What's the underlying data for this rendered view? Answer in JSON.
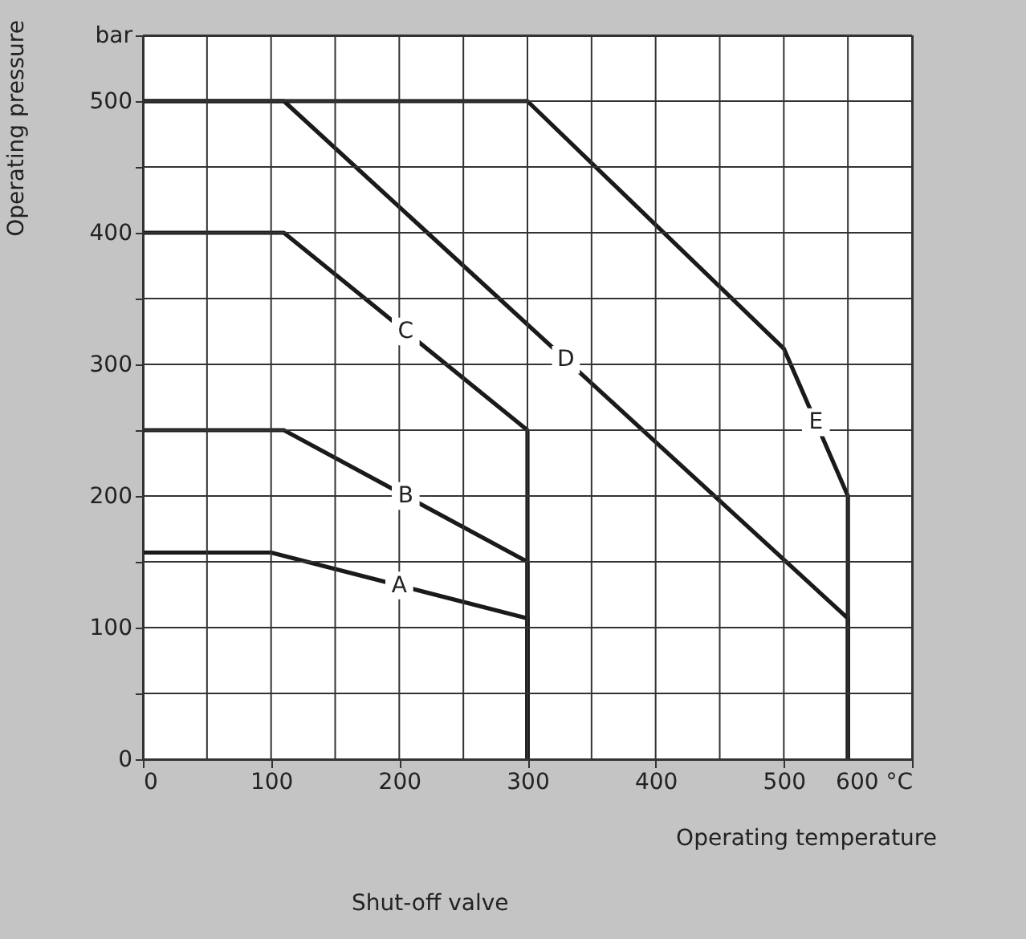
{
  "chart_data": {
    "type": "line",
    "ylabel": "Operating pressure",
    "xlabel": "Operating temperature",
    "annotations": [
      "Shut-off valve"
    ],
    "series": [
      {
        "name": "A",
        "color": "#1a1a1a",
        "x": [
          0,
          100,
          300,
          300
        ],
        "values": [
          157,
          157,
          107,
          0
        ]
      },
      {
        "name": "B",
        "color": "#1a1a1a",
        "x": [
          0,
          110,
          300,
          300
        ],
        "values": [
          250,
          250,
          150,
          0
        ]
      },
      {
        "name": "C",
        "color": "#1a1a1a",
        "x": [
          0,
          110,
          300,
          300
        ],
        "values": [
          400,
          400,
          250,
          0
        ]
      },
      {
        "name": "D",
        "color": "#1a1a1a",
        "x": [
          0,
          110,
          550,
          550
        ],
        "values": [
          500,
          500,
          107,
          0
        ]
      },
      {
        "name": "E",
        "color": "#1a1a1a",
        "x": [
          0,
          300,
          500,
          550,
          550
        ],
        "values": [
          500,
          500,
          312,
          200,
          0
        ]
      }
    ],
    "xlim": [
      0,
      600
    ],
    "xticks": [
      0,
      {
        "value": 50,
        "label": null
      },
      100,
      {
        "value": 150,
        "label": null
      },
      200,
      {
        "value": 250,
        "label": null
      },
      300,
      {
        "value": 350,
        "label": null
      },
      400,
      {
        "value": 450,
        "label": null
      },
      500,
      {
        "value": 550,
        "label": null
      },
      {
        "value": 600,
        "label": "600 °C"
      }
    ],
    "ylim": [
      0,
      550
    ],
    "yticks": [
      0,
      {
        "value": 50,
        "label": null
      },
      100,
      {
        "value": 150,
        "label": null
      },
      200,
      {
        "value": 250,
        "label": null
      },
      300,
      {
        "value": 350,
        "label": null
      },
      400,
      {
        "value": 450,
        "label": null
      },
      500,
      {
        "value": 550,
        "label": "bar"
      }
    ],
    "grid": true,
    "legend": false,
    "marker": "none",
    "line_style": "solid"
  }
}
